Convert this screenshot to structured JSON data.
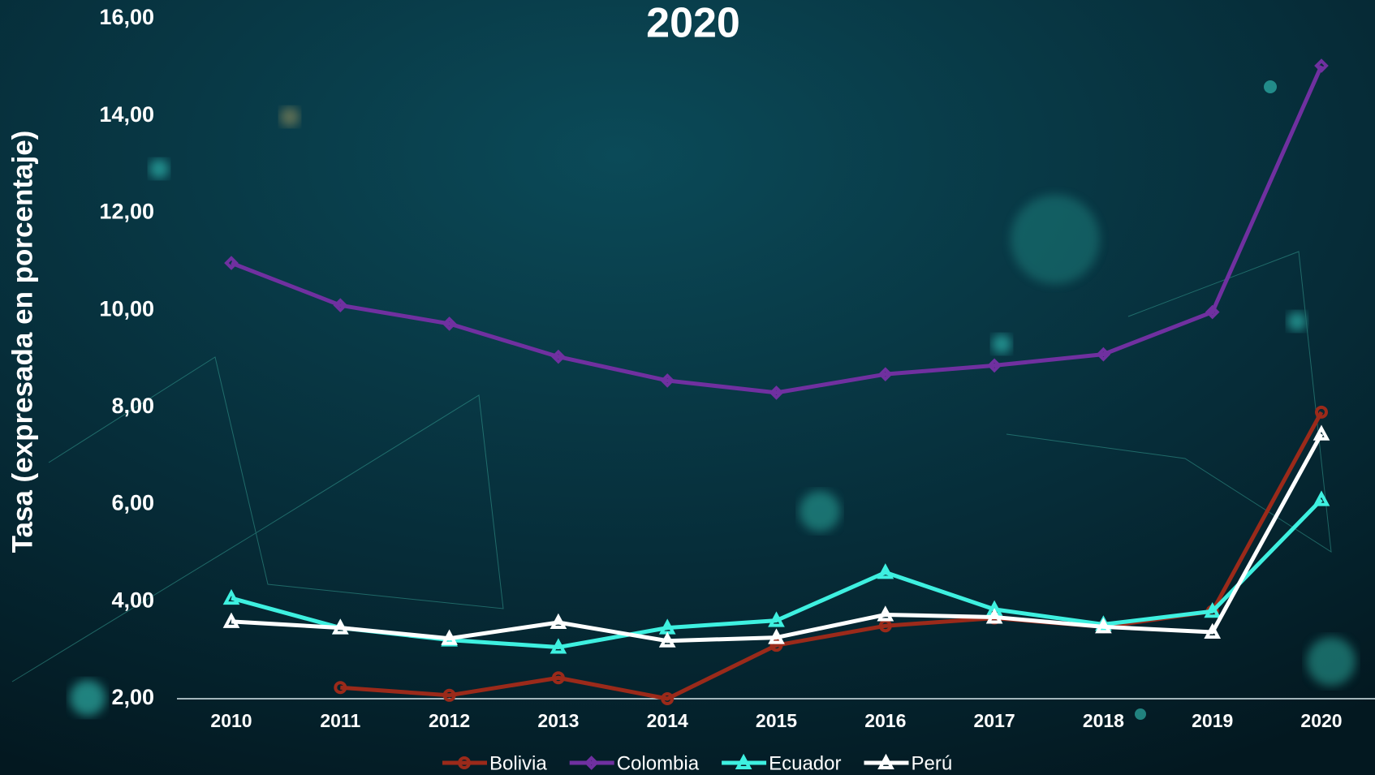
{
  "chart_data": {
    "type": "line",
    "title": "2020",
    "y_label": "Tasa (expresada en porcentaje)",
    "categories": [
      "2010",
      "2011",
      "2012",
      "2013",
      "2014",
      "2015",
      "2016",
      "2017",
      "2018",
      "2019",
      "2020"
    ],
    "series": [
      {
        "name": "Bolivia",
        "color": "#9b2a1a",
        "marker": "circle",
        "values": [
          null,
          2.23,
          2.07,
          2.43,
          2.0,
          3.1,
          3.5,
          3.66,
          3.48,
          3.8,
          7.9
        ]
      },
      {
        "name": "Colombia",
        "color": "#7030a0",
        "marker": "diamond",
        "values": [
          10.97,
          10.1,
          9.72,
          9.04,
          8.55,
          8.3,
          8.68,
          8.86,
          9.09,
          9.96,
          15.03
        ]
      },
      {
        "name": "Ecuador",
        "color": "#3ef0e0",
        "marker": "triangle",
        "values": [
          4.07,
          3.46,
          3.21,
          3.06,
          3.46,
          3.61,
          4.6,
          3.84,
          3.53,
          3.8,
          6.1
        ]
      },
      {
        "name": "Perú",
        "color": "#ffffff",
        "marker": "triangle",
        "values": [
          3.59,
          3.46,
          3.24,
          3.57,
          3.19,
          3.26,
          3.73,
          3.68,
          3.48,
          3.37,
          7.45
        ]
      }
    ],
    "ylim": [
      2,
      16
    ],
    "yticks": [
      {
        "value": 2,
        "label": "2,00"
      },
      {
        "value": 4,
        "label": "4,00"
      },
      {
        "value": 6,
        "label": "6,00"
      },
      {
        "value": 8,
        "label": "8,00"
      },
      {
        "value": 10,
        "label": "10,00"
      },
      {
        "value": 12,
        "label": "12,00"
      },
      {
        "value": 14,
        "label": "14,00"
      },
      {
        "value": 16,
        "label": "16,00"
      }
    ],
    "grid": false
  }
}
